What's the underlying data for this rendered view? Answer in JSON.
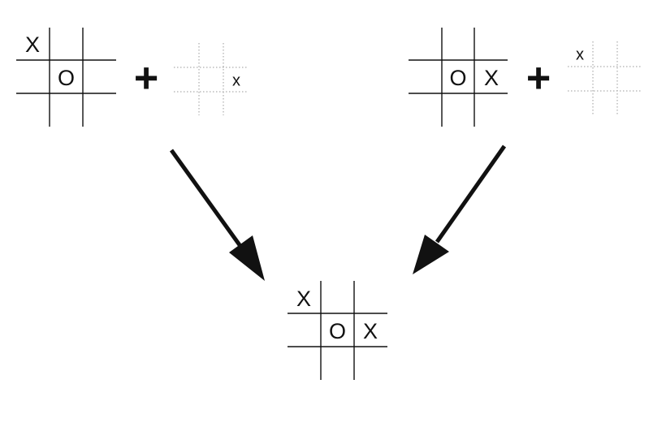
{
  "operator": "+",
  "boards": {
    "top_left": {
      "style": "solid",
      "cells": [
        [
          "X",
          "",
          ""
        ],
        [
          "",
          "O",
          ""
        ],
        [
          "",
          "",
          ""
        ]
      ]
    },
    "top_left_move": {
      "style": "dotted",
      "cells": [
        [
          "",
          "",
          ""
        ],
        [
          "",
          "",
          "x"
        ],
        [
          "",
          "",
          ""
        ]
      ]
    },
    "top_right": {
      "style": "solid",
      "cells": [
        [
          "",
          "",
          ""
        ],
        [
          "",
          "O",
          "X"
        ],
        [
          "",
          "",
          ""
        ]
      ]
    },
    "top_right_move": {
      "style": "dotted",
      "cells": [
        [
          "x",
          "",
          ""
        ],
        [
          "",
          "",
          ""
        ],
        [
          "",
          "",
          ""
        ]
      ]
    },
    "result": {
      "style": "solid",
      "cells": [
        [
          "X",
          "",
          ""
        ],
        [
          "",
          "O",
          "X"
        ],
        [
          "",
          "",
          ""
        ]
      ]
    }
  },
  "colors": {
    "ink": "#111111",
    "dotted": "#9a9a9a"
  }
}
